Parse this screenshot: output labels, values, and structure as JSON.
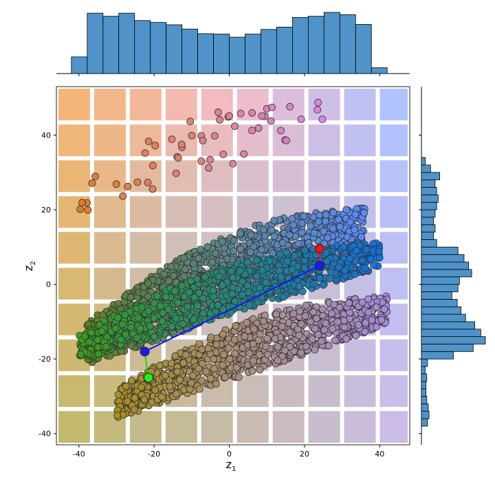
{
  "chart_data": {
    "type": "scatter",
    "title": "",
    "xlabel": "z",
    "xlabel_subscript": "1",
    "ylabel": "z",
    "ylabel_subscript": "2",
    "xlim": [
      -46,
      48
    ],
    "ylim": [
      -43,
      53
    ],
    "xticks": [
      -40,
      -20,
      0,
      20,
      40
    ],
    "yticks": [
      -40,
      -20,
      0,
      20,
      40
    ],
    "grid": false,
    "background_tiles": {
      "x_edges": [
        -46,
        -36.5,
        -27,
        -17.5,
        -8,
        1.5,
        11,
        20.5,
        30,
        39.5,
        48
      ],
      "y_edges": [
        -43,
        -33.4,
        -23.8,
        -14.2,
        -4.6,
        5,
        14.6,
        24.2,
        33.8,
        43.4,
        53
      ],
      "corner_colors": {
        "top_left": "#f2a860",
        "top_right": "#a3b8ff",
        "bottom_left": "#b8ae55",
        "bottom_right": "#c2b0e3",
        "middle_top": "#f0b0c0",
        "middle": "#a8bfd0"
      }
    },
    "marginal_histograms": {
      "color": "#4f93c8",
      "top_x": {
        "bin_edges": [
          -42,
          -37.8,
          -33.6,
          -29.4,
          -25.2,
          -21,
          -16.8,
          -12.6,
          -8.4,
          -4.2,
          0,
          4.2,
          8.4,
          12.6,
          16.8,
          21,
          25.2,
          29.4,
          33.6,
          37.8,
          42,
          46.2
        ],
        "counts": [
          43,
          156,
          148,
          156,
          137,
          132,
          126,
          115,
          103,
          102,
          94,
          102,
          114,
          120,
          145,
          148,
          158,
          152,
          127,
          15,
          0
        ]
      },
      "right_y": {
        "bin_edges": [
          -38,
          -36,
          -34,
          -32,
          -30,
          -28,
          -26,
          -24,
          -22,
          -20,
          -18,
          -16,
          -14,
          -12,
          -10,
          -8,
          -6,
          -4,
          -2,
          0,
          2,
          4,
          6,
          8,
          10,
          12,
          14,
          16,
          18,
          20,
          22,
          24,
          26,
          28,
          30,
          32,
          34,
          36
        ],
        "counts": [
          8,
          10,
          9,
          7,
          6,
          6,
          7,
          5,
          8,
          42,
          68,
          84,
          78,
          70,
          58,
          52,
          47,
          40,
          48,
          50,
          66,
          62,
          56,
          48,
          20,
          16,
          18,
          16,
          18,
          20,
          22,
          20,
          18,
          24,
          12,
          5,
          0
        ]
      }
    },
    "clusters": [
      {
        "name": "",
        "x": [
          -38,
          36
        ],
        "y_center": [
          -16,
          15
        ],
        "thickness": 16,
        "color_start": "#5c7e1e",
        "color_end": "#5a8cff",
        "count": 1300
      },
      {
        "name": "",
        "x": [
          -40,
          40
        ],
        "y_center": [
          -17,
          8
        ],
        "thickness": 10,
        "color_start": "#3c9e1a",
        "color_end": "#1070e0",
        "count": 900
      },
      {
        "name": "",
        "x": [
          -30,
          42
        ],
        "y_center": [
          -32,
          -7
        ],
        "thickness": 11,
        "color_start": "#a88f20",
        "color_end": "#a78be0",
        "count": 900
      },
      {
        "name": "",
        "x": [
          -40,
          25
        ],
        "y_center": [
          23,
          45
        ],
        "thickness": 12,
        "color_start": "#e07820",
        "color_end": "#d884e0",
        "count": 55
      }
    ],
    "trajectory": {
      "line_color": "#0a16ff",
      "points": [
        {
          "x": -21.5,
          "y": -25,
          "color": "#22ee22"
        },
        {
          "x": -22.5,
          "y": -18,
          "color": "#1a1aee"
        },
        {
          "x": 24,
          "y": 5,
          "color": "#1a1aee"
        },
        {
          "x": 24,
          "y": 9.5,
          "color": "#ee1111"
        }
      ],
      "segments": [
        {
          "from": 0,
          "to": 1,
          "color": "#22cc22"
        },
        {
          "from": 1,
          "to": 2,
          "color": "#0a16ff"
        },
        {
          "from": 2,
          "to": 3,
          "color": "#ee1111"
        }
      ]
    }
  }
}
